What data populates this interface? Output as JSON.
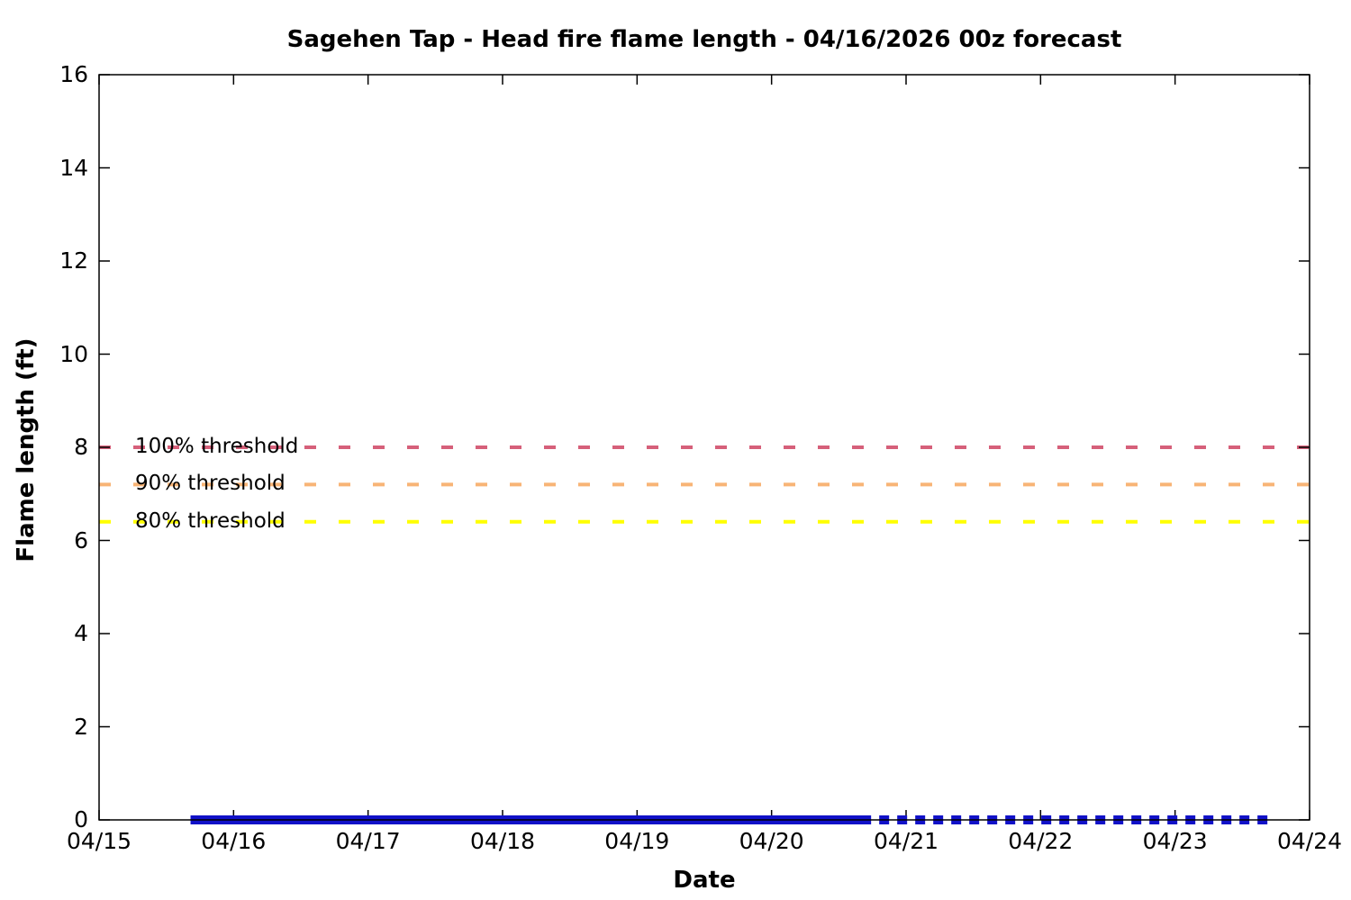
{
  "chart_data": {
    "type": "line",
    "title": "Sagehen Tap - Head fire flame length - 04/16/2026 00z forecast",
    "xlabel": "Date",
    "ylabel": "Flame length (ft)",
    "x_tick_labels": [
      "04/15",
      "04/16",
      "04/17",
      "04/18",
      "04/19",
      "04/20",
      "04/21",
      "04/22",
      "04/23",
      "04/24"
    ],
    "xlim_days_from_0415": [
      0,
      9
    ],
    "ylim": [
      0,
      16
    ],
    "y_ticks": [
      0,
      2,
      4,
      6,
      8,
      10,
      12,
      14,
      16
    ],
    "grid": false,
    "legend_position": "inline labels at left of threshold lines",
    "thresholds": [
      {
        "id": "100",
        "label": "100% threshold",
        "value_ft": 8.0,
        "color": "#d6607a",
        "line_style": "dashed"
      },
      {
        "id": "90",
        "label": "90% threshold",
        "value_ft": 7.2,
        "color": "#f8b476",
        "line_style": "dashed"
      },
      {
        "id": "80",
        "label": "80% threshold",
        "value_ft": 6.4,
        "color": "#ffff00",
        "line_style": "dashed"
      }
    ],
    "series": [
      {
        "name": "head-fire-flame-length-solid",
        "style": "solid",
        "color": "#1111c8",
        "value_ft": 0,
        "x_start_day": 0.68,
        "x_end_day": 5.74
      },
      {
        "name": "head-fire-flame-length-dotted",
        "style": "dotted",
        "color": "#1111c8",
        "value_ft": 0,
        "x_start_day": 5.74,
        "x_end_day": 8.73
      }
    ]
  }
}
